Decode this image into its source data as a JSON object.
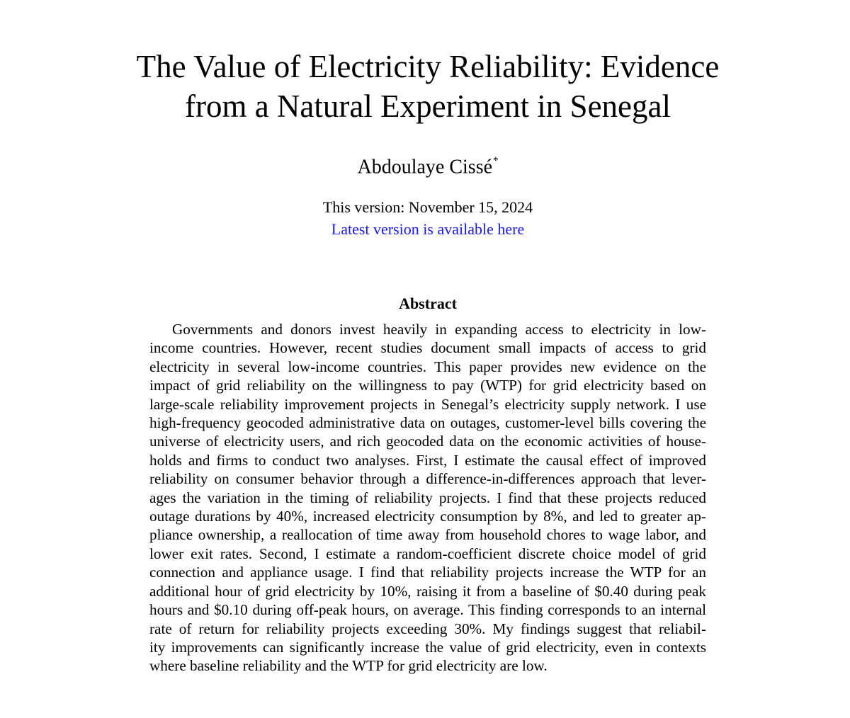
{
  "title": {
    "line1": "The Value of Electricity Reliability: Evidence",
    "line2": "from a Natural Experiment in Senegal"
  },
  "author": {
    "name": "Abdoulaye Cissé",
    "footnote_mark": "*"
  },
  "version": {
    "date_text": "This version: November 15, 2024",
    "link_text": "Latest version is available here"
  },
  "abstract": {
    "heading": "Abstract",
    "lines": [
      "Governments and donors invest heavily in expanding access to electricity in low-",
      "income countries. However, recent studies document small impacts of access to grid",
      "electricity in several low-income countries. This paper provides new evidence on the",
      "impact of grid reliability on the willingness to pay (WTP) for grid electricity based on",
      "large-scale reliability improvement projects in Senegal’s electricity supply network. I use",
      "high-frequency geocoded administrative data on outages, customer-level bills covering the",
      "universe of electricity users, and rich geocoded data on the economic activities of house-",
      "holds and firms to conduct two analyses. First, I estimate the causal effect of improved",
      "reliability on consumer behavior through a difference-in-differences approach that lever-",
      "ages the variation in the timing of reliability projects. I find that these projects reduced",
      "outage durations by 40%, increased electricity consumption by 8%, and led to greater ap-",
      "pliance ownership, a reallocation of time away from household chores to wage labor, and",
      "lower exit rates. Second, I estimate a random-coefficient discrete choice model of grid",
      "connection and appliance usage. I find that reliability projects increase the WTP for an",
      "additional hour of grid electricity by 10%, raising it from a baseline of $0.40 during peak",
      "hours and $0.10 during off-peak hours, on average. This finding corresponds to an internal",
      "rate of return for reliability projects exceeding 30%. My findings suggest that reliabil-",
      "ity improvements can significantly increase the value of grid electricity, even in contexts",
      "where baseline reliability and the WTP for grid electricity are low."
    ]
  },
  "colors": {
    "text": "#000000",
    "link": "#1a1aee",
    "background": "#ffffff"
  }
}
